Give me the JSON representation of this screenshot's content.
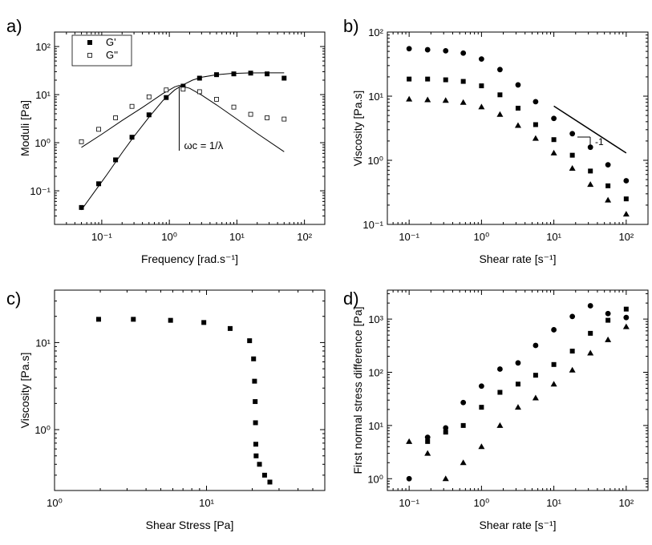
{
  "figure": {
    "description": ""
  },
  "chart_data": [
    {
      "panel": "a)",
      "type": "scatter",
      "xlabel": "Frequency  [rad.s⁻¹]",
      "ylabel": "Moduli [Pa]",
      "xscale": "log",
      "yscale": "log",
      "xlim": [
        0.02,
        200
      ],
      "ylim": [
        0.02,
        200
      ],
      "xticks": [
        {
          "v": 0.1,
          "t": "10⁻¹"
        },
        {
          "v": 1,
          "t": "10⁰"
        },
        {
          "v": 10,
          "t": "10¹"
        },
        {
          "v": 100,
          "t": "10²"
        }
      ],
      "yticks": [
        {
          "v": 0.1,
          "t": "10⁻¹"
        },
        {
          "v": 1,
          "t": "10⁰"
        },
        {
          "v": 10,
          "t": "10¹"
        },
        {
          "v": 100,
          "t": "10²"
        }
      ],
      "legend": [
        {
          "name": "G'",
          "marker": "filled-square"
        },
        {
          "name": "G''",
          "marker": "open-square"
        }
      ],
      "annotation": "ωc = 1/λ",
      "series": [
        {
          "name": "G'",
          "marker": "filled-square",
          "x": [
            0.05,
            0.09,
            0.16,
            0.28,
            0.5,
            0.9,
            1.6,
            2.8,
            5,
            9,
            16,
            28,
            50
          ],
          "y": [
            0.045,
            0.14,
            0.44,
            1.3,
            3.8,
            8.7,
            15,
            22,
            26,
            27,
            28,
            27,
            22
          ]
        },
        {
          "name": "G''",
          "marker": "open-square",
          "x": [
            0.05,
            0.09,
            0.16,
            0.28,
            0.5,
            0.9,
            1.6,
            2.8,
            5,
            9,
            16,
            28,
            50
          ],
          "y": [
            1.05,
            1.9,
            3.3,
            5.7,
            9,
            12.5,
            13,
            11.5,
            8,
            5.5,
            3.9,
            3.3,
            3.1
          ]
        }
      ],
      "fits": [
        {
          "name": "G' fit",
          "x": [
            0.05,
            0.08,
            0.12,
            0.2,
            0.3,
            0.5,
            0.8,
            1.2,
            1.6,
            2.2,
            3,
            5,
            8,
            15,
            30,
            50
          ],
          "y": [
            0.04,
            0.1,
            0.22,
            0.62,
            1.35,
            3.4,
            7.5,
            12.5,
            16,
            20,
            23,
            26,
            27.5,
            28.3,
            28.4,
            28.4
          ]
        },
        {
          "name": "G'' fit",
          "x": [
            0.05,
            0.1,
            0.2,
            0.4,
            0.8,
            1.2,
            1.4,
            2,
            3,
            5,
            10,
            20,
            50
          ],
          "y": [
            0.8,
            1.5,
            2.9,
            5.4,
            10.5,
            14.5,
            15.5,
            13.5,
            9.8,
            6.1,
            3.1,
            1.55,
            0.65
          ]
        }
      ]
    },
    {
      "panel": "b)",
      "type": "scatter",
      "xlabel": "Shear rate  [s⁻¹]",
      "ylabel": "Viscosity  [Pa.s]",
      "xscale": "log",
      "yscale": "log",
      "xlim": [
        0.05,
        200
      ],
      "ylim": [
        0.1,
        100
      ],
      "xticks": [
        {
          "v": 0.1,
          "t": "10⁻¹"
        },
        {
          "v": 1,
          "t": "10⁰"
        },
        {
          "v": 10,
          "t": "10¹"
        },
        {
          "v": 100,
          "t": "10²"
        }
      ],
      "yticks": [
        {
          "v": 0.1,
          "t": "10⁻¹"
        },
        {
          "v": 1,
          "t": "10⁰"
        },
        {
          "v": 10,
          "t": "10¹"
        },
        {
          "v": 100,
          "t": "10²"
        }
      ],
      "annotation": "-1",
      "slope_line": {
        "x": [
          10,
          100
        ],
        "y": [
          7,
          1.3
        ]
      },
      "series": [
        {
          "name": "circles",
          "marker": "filled-circle",
          "x": [
            0.1,
            0.18,
            0.32,
            0.56,
            1,
            1.8,
            3.2,
            5.6,
            10,
            18,
            32,
            56,
            100
          ],
          "y": [
            55,
            53,
            51,
            47,
            38,
            26,
            15,
            8.2,
            4.5,
            2.6,
            1.6,
            0.85,
            0.48
          ]
        },
        {
          "name": "squares",
          "marker": "filled-square",
          "x": [
            0.1,
            0.18,
            0.32,
            0.56,
            1,
            1.8,
            3.2,
            5.6,
            10,
            18,
            32,
            56,
            100
          ],
          "y": [
            18.5,
            18.5,
            18,
            17,
            14.5,
            10.5,
            6.5,
            3.6,
            2.1,
            1.2,
            0.68,
            0.4,
            0.25
          ]
        },
        {
          "name": "triangles",
          "marker": "filled-triangle",
          "x": [
            0.1,
            0.18,
            0.32,
            0.56,
            1,
            1.8,
            3.2,
            5.6,
            10,
            18,
            32,
            56,
            100
          ],
          "y": [
            9,
            8.8,
            8.6,
            8,
            6.8,
            5.2,
            3.5,
            2.2,
            1.3,
            0.75,
            0.42,
            0.24,
            0.145
          ]
        }
      ]
    },
    {
      "panel": "c)",
      "type": "scatter",
      "xlabel": "Shear Stress  [Pa]",
      "ylabel": "Viscosity  [Pa.s]",
      "xscale": "log",
      "yscale": "log",
      "xlim": [
        1,
        60
      ],
      "ylim": [
        0.2,
        40
      ],
      "xticks": [
        {
          "v": 1,
          "t": "10⁰"
        },
        {
          "v": 10,
          "t": "10¹"
        }
      ],
      "yticks": [
        {
          "v": 1,
          "t": "10⁰"
        },
        {
          "v": 10,
          "t": "10¹"
        }
      ],
      "series": [
        {
          "name": "squares",
          "marker": "filled-square",
          "x": [
            1.95,
            3.3,
            5.8,
            9.6,
            14.3,
            19.2,
            20.4,
            20.7,
            20.9,
            21,
            21.1,
            21.2,
            22.3,
            24.1,
            26.1
          ],
          "y": [
            18.5,
            18.5,
            18,
            17,
            14.5,
            10.5,
            6.5,
            3.6,
            2.1,
            1.2,
            0.68,
            0.5,
            0.4,
            0.3,
            0.25
          ]
        }
      ]
    },
    {
      "panel": "d)",
      "type": "scatter",
      "xlabel": "Shear rate [s⁻¹]",
      "ylabel": "First normal stress difference  [Pa]",
      "xscale": "log",
      "yscale": "log",
      "xlim": [
        0.05,
        200
      ],
      "ylim": [
        0.6,
        3500
      ],
      "xticks": [
        {
          "v": 0.1,
          "t": "10⁻¹"
        },
        {
          "v": 1,
          "t": "10⁰"
        },
        {
          "v": 10,
          "t": "10¹"
        },
        {
          "v": 100,
          "t": "10²"
        }
      ],
      "yticks": [
        {
          "v": 1,
          "t": "10⁰"
        },
        {
          "v": 10,
          "t": "10¹"
        },
        {
          "v": 100,
          "t": "10²"
        },
        {
          "v": 1000,
          "t": "10³"
        }
      ],
      "series": [
        {
          "name": "circles",
          "marker": "filled-circle",
          "x": [
            0.1,
            0.18,
            0.32,
            0.56,
            1,
            1.8,
            3.2,
            5.6,
            10,
            18,
            32,
            56,
            100
          ],
          "y": [
            1,
            6,
            9,
            27,
            55,
            115,
            150,
            320,
            630,
            1120,
            1780,
            1270,
            1070
          ]
        },
        {
          "name": "squares",
          "marker": "filled-square",
          "x": [
            0.18,
            0.32,
            0.56,
            1,
            1.8,
            3.2,
            5.6,
            10,
            18,
            32,
            56,
            100
          ],
          "y": [
            5,
            7.5,
            10,
            22,
            42,
            60,
            88,
            140,
            250,
            540,
            950,
            1540
          ]
        },
        {
          "name": "triangles",
          "marker": "filled-triangle",
          "x": [
            0.1,
            0.18,
            0.32,
            0.56,
            1,
            1.8,
            3.2,
            5.6,
            10,
            18,
            32,
            56,
            100
          ],
          "y": [
            5,
            3,
            1,
            2,
            4,
            10,
            22,
            33,
            60,
            110,
            230,
            410,
            720
          ]
        }
      ]
    }
  ]
}
